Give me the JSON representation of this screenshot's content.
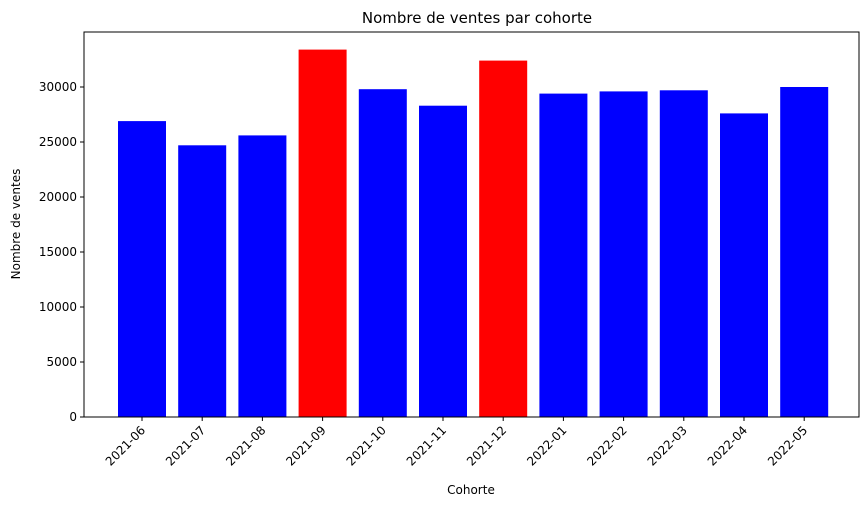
{
  "chart_data": {
    "type": "bar",
    "title": "Nombre de ventes par cohorte",
    "xlabel": "Cohorte",
    "ylabel": "Nombre de ventes",
    "categories": [
      "2021-06",
      "2021-07",
      "2021-08",
      "2021-09",
      "2021-10",
      "2021-11",
      "2021-12",
      "2022-01",
      "2022-02",
      "2022-03",
      "2022-04",
      "2022-05"
    ],
    "values": [
      26900,
      24700,
      25600,
      33400,
      29800,
      28300,
      32400,
      29400,
      29600,
      29700,
      27600,
      30000
    ],
    "bar_colors": [
      "#0000ff",
      "#0000ff",
      "#0000ff",
      "#ff0000",
      "#0000ff",
      "#0000ff",
      "#ff0000",
      "#0000ff",
      "#0000ff",
      "#0000ff",
      "#0000ff",
      "#0000ff"
    ],
    "ylim": [
      0,
      35000
    ],
    "yticks": [
      0,
      5000,
      10000,
      15000,
      20000,
      25000,
      30000
    ],
    "grid": false,
    "x_tick_rotation_deg": 45
  }
}
